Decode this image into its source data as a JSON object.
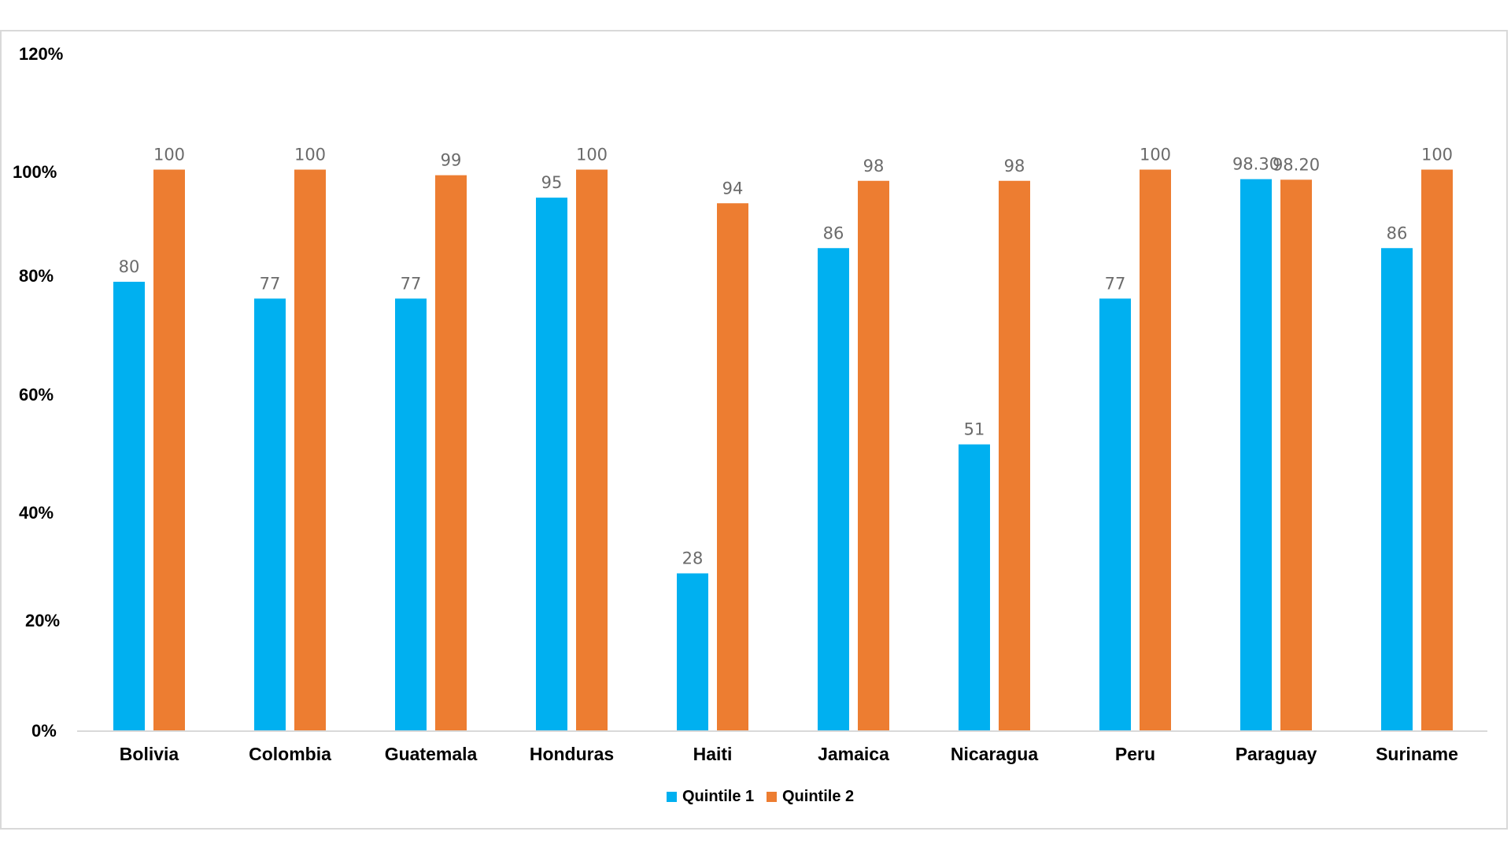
{
  "chart_data": {
    "type": "bar",
    "categories": [
      "Bolivia",
      "Colombia",
      "Guatemala",
      "Honduras",
      "Haiti",
      "Jamaica",
      "Nicaragua",
      "Peru",
      "Paraguay",
      "Suriname"
    ],
    "series": [
      {
        "name": "Quintile 1",
        "color": "#00b0f0",
        "values": [
          80,
          77,
          77,
          95,
          28,
          86,
          51,
          77,
          98.3,
          86
        ],
        "labels": [
          "80",
          "77",
          "77",
          "95",
          "28",
          "86",
          "51",
          "77",
          "98.30",
          "86"
        ]
      },
      {
        "name": "Quintile 2",
        "color": "#ed7d31",
        "values": [
          100,
          100,
          99,
          100,
          94,
          98,
          98,
          100,
          98.2,
          100
        ],
        "labels": [
          "100",
          "100",
          "99",
          "100",
          "94",
          "98",
          "98",
          "100",
          "98.20",
          "100"
        ]
      }
    ],
    "y_ticks": [
      "0%",
      "20%",
      "40%",
      "60%",
      "80%",
      "100%",
      "120%"
    ],
    "ylim": [
      0,
      120
    ],
    "title": "",
    "xlabel": "",
    "ylabel": "",
    "grid": false,
    "legend_position": "bottom-center"
  }
}
